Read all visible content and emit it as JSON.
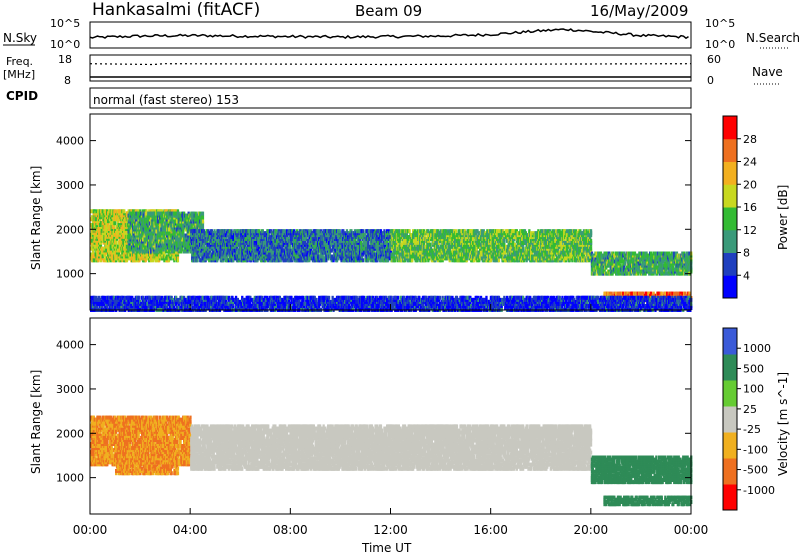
{
  "header": {
    "station": "Hankasalmi (fitACF)",
    "beam": "Beam 09",
    "date": "16/May/2009"
  },
  "noise_panel": {
    "left_label": "N.Sky",
    "right_label": "N.Search",
    "left_ticks": [
      "10^5",
      "10^0"
    ],
    "right_ticks": [
      "10^5",
      "10^0"
    ]
  },
  "freq_panel": {
    "left_label_1": "Freq.",
    "left_label_2": "[MHz]",
    "left_ticks": [
      "18",
      "8"
    ],
    "right_label": "Nave",
    "right_ticks": [
      "60",
      "0"
    ]
  },
  "cpid_panel": {
    "label": "CPID",
    "mode_text": "normal (fast stereo) 153"
  },
  "x_axis": {
    "label": "Time UT",
    "ticks": [
      "00:00",
      "04:00",
      "08:00",
      "12:00",
      "16:00",
      "20:00",
      "00:00"
    ]
  },
  "power_panel": {
    "y_label": "Slant Range [km]",
    "y_ticks": [
      "4000",
      "3000",
      "2000",
      "1000"
    ],
    "colorbar_label": "Power [dB]",
    "colorbar_ticks": [
      "28",
      "24",
      "20",
      "16",
      "12",
      "8",
      "4"
    ],
    "colors": [
      "#0000ff",
      "#1f3fbf",
      "#3a9a7a",
      "#33bb33",
      "#c8d820",
      "#f3b020",
      "#ee7020",
      "#ff0000"
    ]
  },
  "velocity_panel": {
    "y_label": "Slant Range [km]",
    "y_ticks": [
      "4000",
      "3000",
      "2000",
      "1000"
    ],
    "colorbar_label": "Velocity [m s^-1]",
    "colorbar_ticks": [
      "1000",
      "500",
      "100",
      "25",
      "-25",
      "-100",
      "-500",
      "-1000"
    ],
    "colors": [
      "#3a5ad8",
      "#2e8b57",
      "#66cc33",
      "#c8c8c0",
      "#f0b020",
      "#ee7020",
      "#ff0000"
    ]
  },
  "chart_data": [
    {
      "type": "line",
      "title": "N.Sky / N.Search",
      "x": [
        0,
        2,
        4,
        6,
        8,
        10,
        12,
        14,
        16,
        18,
        19,
        20,
        22,
        24
      ],
      "series": [
        {
          "name": "noise",
          "values": [
            2.0,
            2.3,
            2.4,
            2.3,
            2.2,
            2.1,
            2.2,
            2.3,
            2.6,
            3.3,
            3.6,
            3.2,
            2.4,
            2.1
          ]
        }
      ],
      "xlim": [
        0,
        24
      ],
      "ylim": [
        0,
        5
      ]
    },
    {
      "type": "line",
      "title": "Freq / Nave",
      "x": [
        0,
        2.5,
        3.0,
        12.0,
        24
      ],
      "series": [
        {
          "name": "Nave",
          "values": [
            40,
            38,
            40,
            38,
            40
          ]
        }
      ],
      "xlim": [
        0,
        24
      ],
      "ylim": [
        0,
        60
      ]
    },
    {
      "type": "heatmap",
      "title": "Power [dB]",
      "xlabel": "Time UT",
      "ylabel": "Slant Range [km]",
      "xlim": [
        0,
        24
      ],
      "ylim": [
        180,
        4600
      ],
      "bands": [
        {
          "x0": 0.0,
          "x1": 3.5,
          "y0": 1300,
          "y1": 2450,
          "z": 20
        },
        {
          "x0": 1.5,
          "x1": 4.5,
          "y0": 1500,
          "y1": 2400,
          "z": 14
        },
        {
          "x0": 4.0,
          "x1": 12.0,
          "y0": 1300,
          "y1": 2000,
          "z": 10
        },
        {
          "x0": 12.0,
          "x1": 20.0,
          "y0": 1300,
          "y1": 2000,
          "z": 16
        },
        {
          "x0": 20.0,
          "x1": 24.0,
          "y0": 1000,
          "y1": 1500,
          "z": 14
        },
        {
          "x0": 20.5,
          "x1": 24.0,
          "y0": 400,
          "y1": 600,
          "z": 28
        },
        {
          "x0": 0.0,
          "x1": 24.0,
          "y0": 180,
          "y1": 500,
          "z": 6
        }
      ]
    },
    {
      "type": "heatmap",
      "title": "Velocity [m s^-1]",
      "xlabel": "Time UT",
      "ylabel": "Slant Range [km]",
      "xlim": [
        0,
        24
      ],
      "ylim": [
        180,
        4600
      ],
      "bands": [
        {
          "x0": 0.0,
          "x1": 4.0,
          "y0": 1300,
          "y1": 2400,
          "z": -100
        },
        {
          "x0": 1.0,
          "x1": 3.5,
          "y0": 1100,
          "y1": 1300,
          "z": -100
        },
        {
          "x0": 4.0,
          "x1": 20.0,
          "y0": 1200,
          "y1": 2200,
          "z": 0
        },
        {
          "x0": 20.0,
          "x1": 24.0,
          "y0": 900,
          "y1": 1500,
          "z": 100
        },
        {
          "x0": 20.5,
          "x1": 24.0,
          "y0": 400,
          "y1": 600,
          "z": 100
        }
      ]
    }
  ]
}
